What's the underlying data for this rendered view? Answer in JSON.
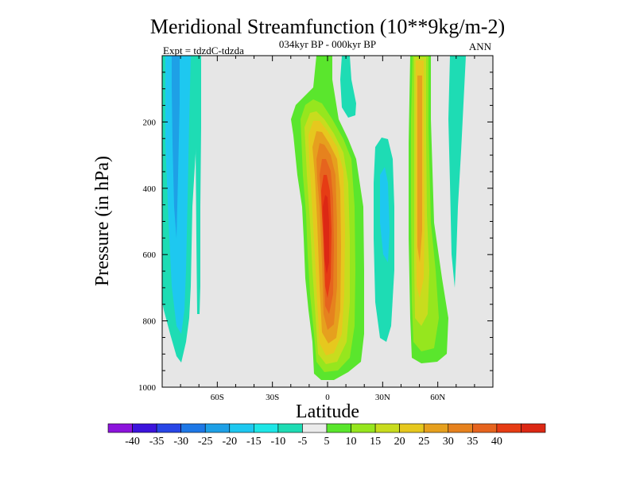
{
  "chart_data": {
    "type": "contour",
    "title": "Meridional Streamfunction (10**9kg/m-2)",
    "subtitle_center": "034kyr BP - 000kyr BP",
    "subtitle_left": "Expt = tdzdC-tdzda",
    "subtitle_right": "ANN",
    "xlabel": "Latitude",
    "ylabel": "Pressure (in hPa)",
    "xlim": [
      -90,
      90
    ],
    "ylim": [
      1000,
      0
    ],
    "xticks": [
      {
        "value": -60,
        "label": "60S"
      },
      {
        "value": -30,
        "label": "30S"
      },
      {
        "value": 0,
        "label": "0"
      },
      {
        "value": 30,
        "label": "30N"
      },
      {
        "value": 60,
        "label": "60N"
      }
    ],
    "yticks": [
      {
        "value": 200,
        "label": "200"
      },
      {
        "value": 400,
        "label": "400"
      },
      {
        "value": 600,
        "label": "600"
      },
      {
        "value": 800,
        "label": "800"
      },
      {
        "value": 1000,
        "label": "1000"
      }
    ],
    "background_color": "#e6e6e6",
    "colorbar": {
      "colors": [
        "#8c14dc",
        "#3c14dc",
        "#2846e6",
        "#1e78e6",
        "#1ea0e6",
        "#1ec8f0",
        "#1ee6e6",
        "#1edcb4",
        "#ebebeb",
        "#5ae62d",
        "#96e61e",
        "#c8dc1e",
        "#e6c81e",
        "#e6a01e",
        "#e6821e",
        "#e6641e",
        "#e63c14",
        "#dc2814"
      ],
      "labels": [
        "-40",
        "-35",
        "-30",
        "-25",
        "-20",
        "-15",
        "-10",
        "-5",
        "5",
        "10",
        "15",
        "20",
        "25",
        "30",
        "35",
        "40"
      ]
    },
    "features": [
      {
        "name": "southern-negative-cell-outer",
        "value": -10,
        "color": "#1edcb4",
        "lat_range": [
          -90,
          -70
        ],
        "pres_range": [
          0,
          940
        ]
      },
      {
        "name": "southern-negative-cell-core",
        "value": -15,
        "color": "#1ec8f0",
        "lat_range": [
          -88,
          -76
        ],
        "pres_range": [
          0,
          850
        ]
      },
      {
        "name": "southern-thin-negative",
        "value": -10,
        "color": "#1edcb4",
        "lat_range": [
          -68,
          -66
        ],
        "pres_range": [
          0,
          790
        ]
      },
      {
        "name": "tropical-positive-cell",
        "value": 40,
        "color": "#dc2814",
        "lat_range": [
          -14,
          20
        ],
        "pres_range": [
          0,
          990
        ]
      },
      {
        "name": "nh-subtropical-negative",
        "value": -10,
        "color": "#1edcb4",
        "lat_range": [
          25,
          37
        ],
        "pres_range": [
          240,
          880
        ]
      },
      {
        "name": "nh-upper-negative",
        "value": -10,
        "color": "#1edcb4",
        "lat_range": [
          8,
          15
        ],
        "pres_range": [
          0,
          210
        ]
      },
      {
        "name": "nh-midlat-positive-cell",
        "value": 25,
        "color": "#e6c81e",
        "lat_range": [
          46,
          62
        ],
        "pres_range": [
          0,
          960
        ]
      },
      {
        "name": "nh-highlat-negative",
        "value": -10,
        "color": "#1edcb4",
        "lat_range": [
          70,
          78
        ],
        "pres_range": [
          0,
          710
        ]
      }
    ]
  }
}
